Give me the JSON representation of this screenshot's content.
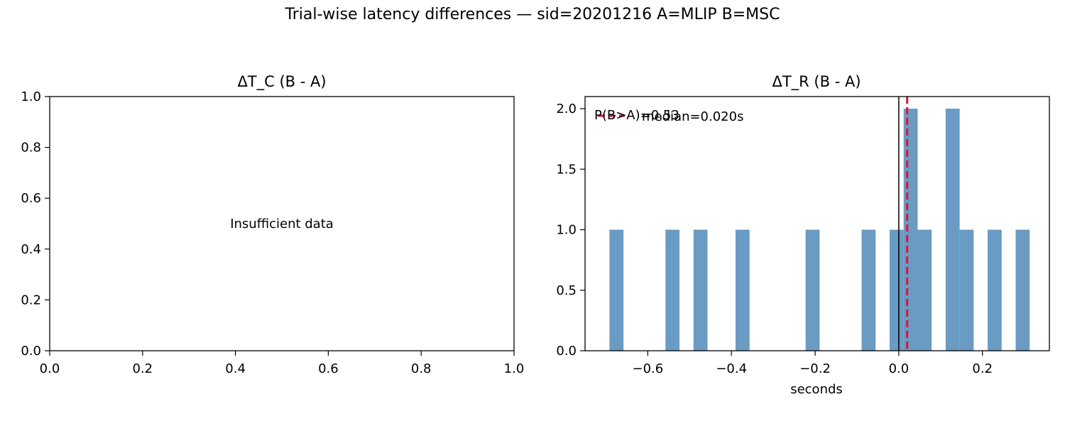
{
  "figure": {
    "suptitle": "Trial-wise latency differences — sid=20201216  A=MLIP  B=MSC"
  },
  "chart_data": [
    {
      "type": "bar",
      "title": "ΔT_C (B - A)",
      "xlabel": "",
      "ylabel": "",
      "xlim": [
        0,
        1
      ],
      "ylim": [
        0,
        1
      ],
      "xticks": [
        0.0,
        0.2,
        0.4,
        0.6,
        0.8,
        1.0
      ],
      "yticks": [
        0.0,
        0.2,
        0.4,
        0.6,
        0.8,
        1.0
      ],
      "xtick_labels": [
        "0.0",
        "0.2",
        "0.4",
        "0.6",
        "0.8",
        "1.0"
      ],
      "ytick_labels": [
        "0.0",
        "0.2",
        "0.4",
        "0.6",
        "0.8",
        "1.0"
      ],
      "values": [],
      "annotation": "Insufficient data",
      "grid": false
    },
    {
      "type": "bar",
      "title": "ΔT_R (B - A)",
      "xlabel": "seconds",
      "ylabel": "",
      "xlim": [
        -0.75,
        0.36
      ],
      "ylim": [
        0,
        2.1
      ],
      "xticks": [
        -0.6,
        -0.4,
        -0.2,
        0.0,
        0.2
      ],
      "yticks": [
        0.0,
        0.5,
        1.0,
        1.5,
        2.0
      ],
      "xtick_labels": [
        "−0.6",
        "−0.4",
        "−0.2",
        "0.0",
        "0.2"
      ],
      "ytick_labels": [
        "0.0",
        "0.5",
        "1.0",
        "1.5",
        "2.0"
      ],
      "bin_width": 0.0335,
      "bins": [
        {
          "left": -0.6916,
          "count": 1
        },
        {
          "left": -0.5577,
          "count": 1
        },
        {
          "left": -0.4907,
          "count": 1
        },
        {
          "left": -0.3902,
          "count": 1
        },
        {
          "left": -0.2228,
          "count": 1
        },
        {
          "left": -0.0889,
          "count": 1
        },
        {
          "left": -0.0219,
          "count": 1
        },
        {
          "left": 0.0116,
          "count": 2
        },
        {
          "left": 0.045,
          "count": 1
        },
        {
          "left": 0.112,
          "count": 2
        },
        {
          "left": 0.1455,
          "count": 1
        },
        {
          "left": 0.2124,
          "count": 1
        },
        {
          "left": 0.2794,
          "count": 1
        }
      ],
      "bar_color": "#6a9bc3",
      "zero_line": 0.0,
      "median": 0.02,
      "median_color": "#dc143c",
      "legend": {
        "label": "median=0.020s",
        "placement": "top-left"
      },
      "annotation": "P(B>A)=0.53",
      "grid": false
    }
  ]
}
